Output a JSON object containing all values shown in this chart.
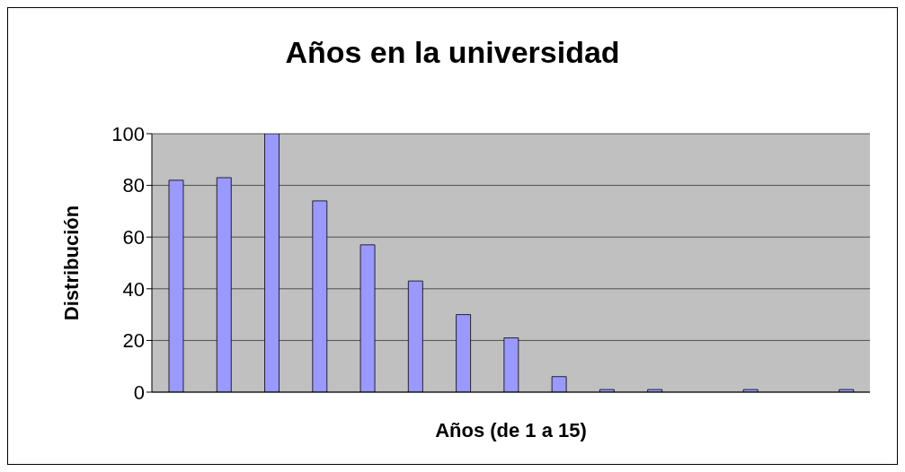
{
  "chart_data": {
    "type": "bar",
    "title": "Años en la universidad",
    "xlabel": "Años (de 1 a 15)",
    "ylabel": "Distribución",
    "categories": [
      null,
      null,
      null,
      null,
      null,
      null,
      null,
      null,
      null,
      null,
      null,
      null,
      null,
      null,
      null
    ],
    "values": [
      82,
      83,
      100,
      74,
      57,
      43,
      30,
      21,
      6,
      1,
      1,
      0,
      1,
      0,
      1
    ],
    "color": "#9999ff",
    "ylim": [
      0,
      100
    ],
    "yticks": [
      0,
      20,
      40,
      60,
      80,
      100
    ],
    "grid": "y"
  }
}
